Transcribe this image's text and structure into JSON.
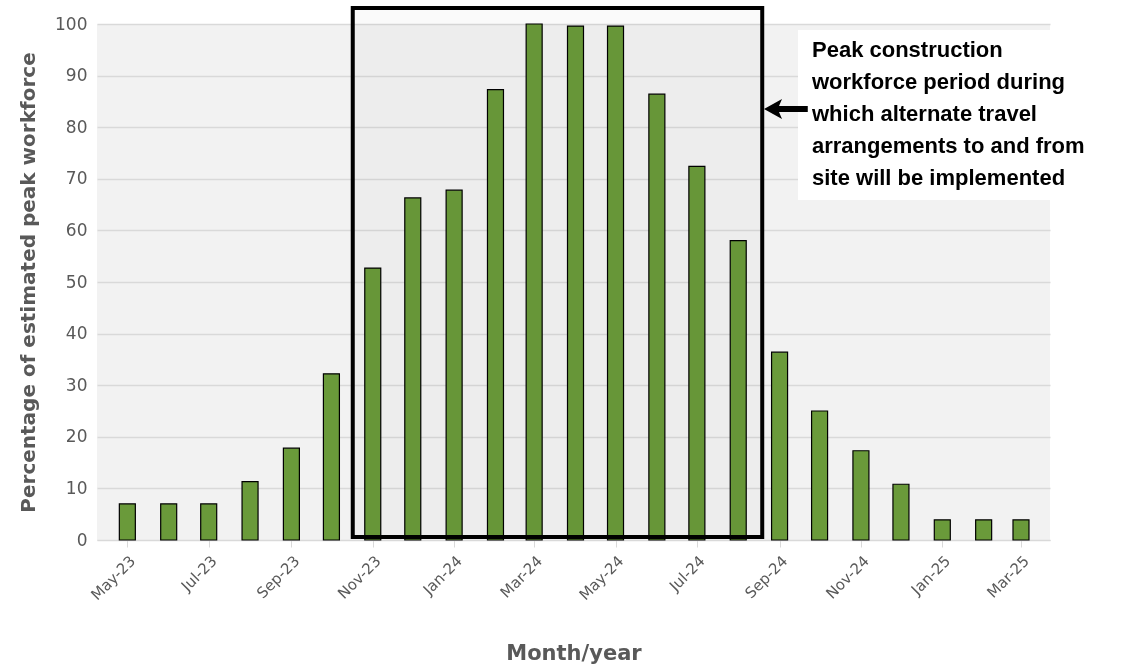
{
  "chart_data": {
    "type": "bar",
    "xlabel": "Month/year",
    "ylabel": "Percentage of estimated peak workforce",
    "x": [
      "2023-05",
      "2023-06",
      "2023-07",
      "2023-08",
      "2023-09",
      "2023-10",
      "2023-11",
      "2023-12",
      "2024-01",
      "2024-02",
      "2024-03",
      "2024-04",
      "2024-05",
      "2024-06",
      "2024-07",
      "2024-08",
      "2024-09",
      "2024-10",
      "2024-11",
      "2024-12",
      "2025-01",
      "2025-02",
      "2025-03"
    ],
    "values": [
      7,
      7,
      7,
      11.3,
      17.8,
      32.2,
      52.7,
      66.3,
      67.8,
      87.3,
      100,
      99.6,
      99.6,
      86.4,
      72.4,
      58,
      36.4,
      25,
      17.3,
      10.8,
      3.9,
      3.9,
      3.9
    ],
    "color": "#6a9a3a",
    "xlim": [
      "2023-04-12",
      "2025-03-19"
    ],
    "xticks": [
      {
        "value": "2023-05",
        "label": "May-23"
      },
      {
        "value": "2023-07",
        "label": "Jul-23"
      },
      {
        "value": "2023-09",
        "label": "Sep-23"
      },
      {
        "value": "2023-11",
        "label": "Nov-23"
      },
      {
        "value": "2024-01",
        "label": "Jan-24"
      },
      {
        "value": "2024-03",
        "label": "Mar-24"
      },
      {
        "value": "2024-05",
        "label": "May-24"
      },
      {
        "value": "2024-07",
        "label": "Jul-24"
      },
      {
        "value": "2024-09",
        "label": "Sep-24"
      },
      {
        "value": "2024-11",
        "label": "Nov-24"
      },
      {
        "value": "2025-01",
        "label": "Jan-25"
      },
      {
        "value": "2025-03",
        "label": "Mar-25"
      }
    ],
    "ylim": [
      0,
      100
    ],
    "yticks": [
      0,
      10,
      20,
      30,
      40,
      50,
      60,
      70,
      80,
      90,
      100
    ],
    "grid": "y",
    "bands": [
      {
        "axis": "x",
        "from": "2023-10-17",
        "to": "2024-08-19",
        "color": "#000000",
        "label": "Peak construction workforce period during which alternate travel arrangements to and from site will be implemented"
      }
    ]
  }
}
